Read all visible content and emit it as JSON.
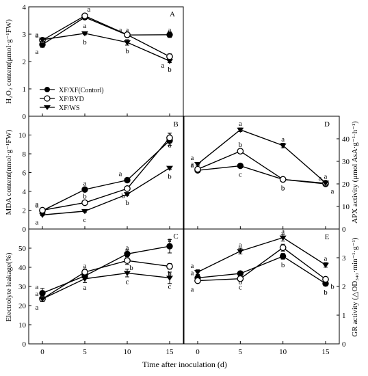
{
  "figure": {
    "xlabel": "Time after inoculation (d)",
    "x_ticks": [
      "0",
      "5",
      "10",
      "15"
    ]
  },
  "legend": {
    "entries": [
      {
        "label": "XF/XF(Contorl)",
        "marker": "circle-filled"
      },
      {
        "label": "XF/BYD",
        "marker": "circle-open"
      },
      {
        "label": "XF/WS",
        "marker": "triangle-down-filled"
      }
    ]
  },
  "chart_data": [
    {
      "panel": "A",
      "type": "line",
      "ylabel": "H₂O₂ content(μmol·g⁻¹FW)",
      "ylim": [
        0,
        4
      ],
      "yticks": [
        "0",
        "1",
        "2",
        "3",
        "4"
      ],
      "x": [
        0,
        5,
        10,
        15
      ],
      "series": [
        {
          "name": "XF/XF(Contorl)",
          "marker": "circle-filled",
          "values": [
            2.62,
            3.62,
            2.97,
            2.98
          ],
          "errors": [
            0.1,
            0.07,
            0.08,
            0.1
          ],
          "letters": [
            "a",
            "a",
            "a",
            "a"
          ]
        },
        {
          "name": "XF/BYD",
          "marker": "circle-open",
          "values": [
            2.78,
            3.67,
            2.98,
            2.18
          ],
          "errors": [
            0.05,
            0.08,
            0.07,
            0.1
          ],
          "letters": [
            "a",
            "a",
            "a",
            "a"
          ]
        },
        {
          "name": "XF/WS",
          "marker": "triangle-down-filled",
          "values": [
            2.8,
            3.03,
            2.7,
            2.02
          ],
          "errors": [
            0.06,
            0.05,
            0.1,
            0.06
          ],
          "letters": [
            "a",
            "b",
            "b",
            "b"
          ]
        }
      ]
    },
    {
      "panel": "B",
      "type": "line",
      "ylabel": "MDA content(nmol·g⁻¹FW)",
      "ylim": [
        0,
        12
      ],
      "yticks": [
        "0",
        "2",
        "4",
        "6",
        "8",
        "10"
      ],
      "x": [
        0,
        5,
        10,
        15
      ],
      "series": [
        {
          "name": "XF/XF(Contorl)",
          "marker": "circle-filled",
          "values": [
            1.95,
            4.2,
            5.2,
            9.4
          ],
          "errors": [
            0.1,
            0.1,
            0.15,
            0.5
          ],
          "letters": [
            "a",
            "a",
            "a",
            "a"
          ]
        },
        {
          "name": "XF/BYD",
          "marker": "circle-open",
          "values": [
            2.0,
            2.8,
            4.3,
            9.7
          ],
          "errors": [
            0.1,
            0.1,
            0.15,
            0.5
          ],
          "letters": [
            "a",
            "b",
            "b",
            "a"
          ]
        },
        {
          "name": "XF/WS",
          "marker": "triangle-down-filled",
          "values": [
            1.5,
            1.9,
            3.7,
            6.5
          ],
          "errors": [
            0.08,
            0.1,
            0.15,
            0.15
          ],
          "letters": [
            "a",
            "c",
            "b",
            "b"
          ]
        }
      ]
    },
    {
      "panel": "C",
      "type": "line",
      "ylabel": "Electrolyte leakage(%)",
      "ylim": [
        0,
        60
      ],
      "yticks": [
        "0",
        "10",
        "20",
        "30",
        "40",
        "50"
      ],
      "x": [
        0,
        5,
        10,
        15
      ],
      "series": [
        {
          "name": "XF/XF(Contorl)",
          "marker": "circle-filled",
          "values": [
            26.5,
            35.5,
            47,
            51
          ],
          "errors": [
            2.5,
            1.5,
            2.0,
            3.5
          ],
          "letters": [
            "a",
            "a",
            "a",
            "a"
          ]
        },
        {
          "name": "XF/BYD",
          "marker": "circle-open",
          "values": [
            23.5,
            37.5,
            43.5,
            40.5
          ],
          "errors": [
            1.5,
            1.5,
            2.0,
            1.5
          ],
          "letters": [
            "a",
            "a",
            "b",
            "b"
          ]
        },
        {
          "name": "XF/WS",
          "marker": "triangle-down-filled",
          "values": [
            23.5,
            34,
            37,
            34.5
          ],
          "errors": [
            1.5,
            2.0,
            2.0,
            3.0
          ],
          "letters": [
            "a",
            "a",
            "c",
            "c"
          ]
        }
      ]
    },
    {
      "panel": "D",
      "type": "line",
      "ylabel": "APX activity (μmol AsA·g⁻¹·h⁻¹)",
      "ylim": [
        0,
        50
      ],
      "yticks": [
        "0",
        "10",
        "20",
        "30",
        "40"
      ],
      "x": [
        0,
        5,
        10,
        15
      ],
      "series": [
        {
          "name": "XF/XF(Contorl)",
          "marker": "circle-filled",
          "values": [
            26,
            28,
            22,
            20
          ],
          "errors": [
            0.6,
            0.6,
            0.8,
            0.6
          ],
          "letters": [
            "a",
            "c",
            "b",
            "a"
          ]
        },
        {
          "name": "XF/BYD",
          "marker": "circle-open",
          "values": [
            26.5,
            34.5,
            22,
            20.3
          ],
          "errors": [
            0.6,
            0.6,
            0.8,
            0.6
          ],
          "letters": [
            "a",
            "b",
            "b",
            "a"
          ]
        },
        {
          "name": "XF/WS",
          "marker": "triangle-down-filled",
          "values": [
            28.8,
            44,
            37,
            20.5
          ],
          "errors": [
            0.6,
            0.8,
            1.0,
            0.6
          ],
          "letters": [
            "a",
            "a",
            "a",
            "a"
          ]
        }
      ]
    },
    {
      "panel": "E",
      "type": "line",
      "ylabel": "GR activity (△OD₃₄₀·min⁻¹·g⁻¹)",
      "ylim": [
        0,
        4
      ],
      "yticks": [
        "0",
        "1",
        "2",
        "3"
      ],
      "x": [
        0,
        5,
        10,
        15
      ],
      "series": [
        {
          "name": "XF/XF(Contorl)",
          "marker": "circle-filled",
          "values": [
            2.3,
            2.45,
            3.05,
            2.1
          ],
          "errors": [
            0.1,
            0.08,
            0.1,
            0.08
          ],
          "letters": [
            "a",
            "b",
            "b",
            "b"
          ]
        },
        {
          "name": "XF/BYD",
          "marker": "circle-open",
          "values": [
            2.2,
            2.27,
            3.35,
            2.25
          ],
          "errors": [
            0.08,
            0.08,
            0.12,
            0.08
          ],
          "letters": [
            "a",
            "c",
            "b",
            "b"
          ]
        },
        {
          "name": "XF/WS",
          "marker": "triangle-down-filled",
          "values": [
            2.5,
            3.23,
            3.7,
            2.75
          ],
          "errors": [
            0.08,
            0.1,
            0.12,
            0.08
          ],
          "letters": [
            "a",
            "a",
            "a",
            "a"
          ]
        }
      ]
    }
  ]
}
